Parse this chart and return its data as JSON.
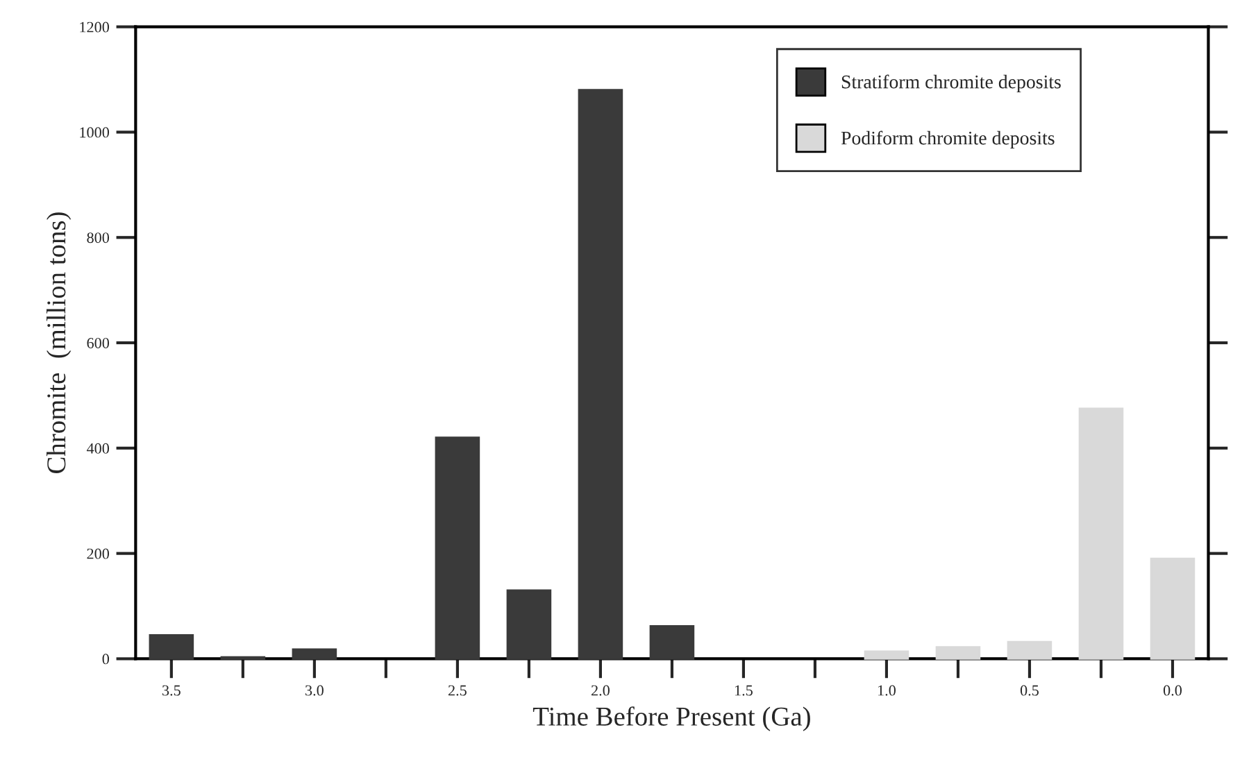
{
  "chart_data": {
    "type": "bar",
    "xlabel": "Time Before Present (Ga)",
    "ylabel": "Chromite  (million tons)",
    "series": [
      {
        "name": "Stratiform chromite deposits",
        "color": "#3a3a3a",
        "x": [
          3.5,
          3.25,
          3.0,
          2.5,
          2.25,
          2.0,
          1.75
        ],
        "values": [
          45,
          3,
          18,
          420,
          130,
          1080,
          62
        ]
      },
      {
        "name": "Podiform chromite deposits",
        "color": "#d9d9d9",
        "x": [
          1.0,
          0.75,
          0.5,
          0.25,
          0.0
        ],
        "values": [
          14,
          22,
          32,
          475,
          190
        ]
      }
    ],
    "xlim": [
      3.625,
      -0.125
    ],
    "xticks": [
      3.5,
      {
        "value": 3.25,
        "label": null
      },
      {
        "value": 3,
        "label": "3.0"
      },
      {
        "value": 2.75,
        "label": null
      },
      2.5,
      {
        "value": 2.25,
        "label": null
      },
      {
        "value": 2,
        "label": "2.0"
      },
      {
        "value": 1.75,
        "label": null
      },
      1.5,
      {
        "value": 1.25,
        "label": null
      },
      {
        "value": 1,
        "label": "1.0"
      },
      {
        "value": 0.75,
        "label": null
      },
      0.5,
      {
        "value": 0.25,
        "label": null
      },
      {
        "value": 0,
        "label": "0.0"
      }
    ],
    "ylim": [
      0,
      1200
    ],
    "yticks": [
      0,
      200,
      400,
      600,
      800,
      1000,
      1200
    ],
    "legend": "top right",
    "grid": false
  }
}
